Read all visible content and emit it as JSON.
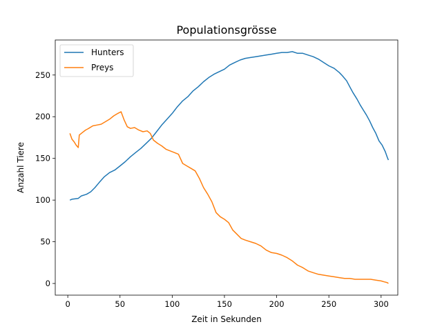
{
  "chart_data": {
    "type": "line",
    "title": "Populationsgrösse",
    "xlabel": "Zeit in Sekunden",
    "ylabel": "Anzahl Tiere",
    "xlim": [
      -12,
      316
    ],
    "ylim": [
      -14,
      292
    ],
    "xticks": [
      0,
      50,
      100,
      150,
      200,
      250,
      300
    ],
    "yticks": [
      0,
      50,
      100,
      150,
      200,
      250
    ],
    "grid": false,
    "legend_position": "top-left",
    "series": [
      {
        "name": "Hunters",
        "color": "#1f77b4",
        "points": [
          [
            2,
            100
          ],
          [
            4,
            101
          ],
          [
            10,
            102
          ],
          [
            13,
            105
          ],
          [
            18,
            107
          ],
          [
            22,
            110
          ],
          [
            26,
            115
          ],
          [
            30,
            121
          ],
          [
            35,
            128
          ],
          [
            40,
            133
          ],
          [
            45,
            136
          ],
          [
            50,
            141
          ],
          [
            55,
            146
          ],
          [
            60,
            152
          ],
          [
            65,
            157
          ],
          [
            70,
            162
          ],
          [
            75,
            168
          ],
          [
            80,
            174
          ],
          [
            85,
            182
          ],
          [
            90,
            190
          ],
          [
            95,
            197
          ],
          [
            100,
            204
          ],
          [
            105,
            212
          ],
          [
            110,
            219
          ],
          [
            115,
            224
          ],
          [
            120,
            231
          ],
          [
            125,
            236
          ],
          [
            130,
            242
          ],
          [
            135,
            247
          ],
          [
            140,
            251
          ],
          [
            145,
            254
          ],
          [
            150,
            257
          ],
          [
            155,
            262
          ],
          [
            160,
            265
          ],
          [
            165,
            268
          ],
          [
            170,
            270
          ],
          [
            175,
            271
          ],
          [
            180,
            272
          ],
          [
            185,
            273
          ],
          [
            190,
            274
          ],
          [
            195,
            275
          ],
          [
            200,
            276
          ],
          [
            205,
            277
          ],
          [
            210,
            277
          ],
          [
            215,
            278
          ],
          [
            220,
            276
          ],
          [
            225,
            276
          ],
          [
            230,
            274
          ],
          [
            235,
            272
          ],
          [
            240,
            269
          ],
          [
            245,
            265
          ],
          [
            250,
            261
          ],
          [
            255,
            258
          ],
          [
            260,
            253
          ],
          [
            263,
            249
          ],
          [
            267,
            243
          ],
          [
            270,
            236
          ],
          [
            273,
            229
          ],
          [
            277,
            221
          ],
          [
            280,
            214
          ],
          [
            283,
            208
          ],
          [
            286,
            202
          ],
          [
            289,
            195
          ],
          [
            292,
            187
          ],
          [
            295,
            180
          ],
          [
            298,
            171
          ],
          [
            301,
            166
          ],
          [
            304,
            158
          ],
          [
            306,
            151
          ],
          [
            307,
            148
          ]
        ]
      },
      {
        "name": "Preys",
        "color": "#ff7f0e",
        "points": [
          [
            2,
            180
          ],
          [
            4,
            173
          ],
          [
            6,
            170
          ],
          [
            8,
            166
          ],
          [
            10,
            163
          ],
          [
            11,
            178
          ],
          [
            14,
            181
          ],
          [
            17,
            184
          ],
          [
            20,
            186
          ],
          [
            24,
            189
          ],
          [
            28,
            190
          ],
          [
            32,
            191
          ],
          [
            36,
            194
          ],
          [
            40,
            197
          ],
          [
            44,
            201
          ],
          [
            48,
            204
          ],
          [
            51,
            206
          ],
          [
            54,
            196
          ],
          [
            57,
            188
          ],
          [
            60,
            186
          ],
          [
            64,
            187
          ],
          [
            68,
            184
          ],
          [
            72,
            182
          ],
          [
            76,
            183
          ],
          [
            79,
            180
          ],
          [
            82,
            172
          ],
          [
            86,
            168
          ],
          [
            90,
            165
          ],
          [
            94,
            161
          ],
          [
            98,
            159
          ],
          [
            102,
            157
          ],
          [
            106,
            155
          ],
          [
            110,
            144
          ],
          [
            114,
            141
          ],
          [
            118,
            138
          ],
          [
            122,
            135
          ],
          [
            126,
            126
          ],
          [
            130,
            115
          ],
          [
            134,
            107
          ],
          [
            138,
            98
          ],
          [
            142,
            85
          ],
          [
            146,
            80
          ],
          [
            150,
            77
          ],
          [
            154,
            73
          ],
          [
            158,
            64
          ],
          [
            162,
            59
          ],
          [
            166,
            54
          ],
          [
            170,
            52
          ],
          [
            175,
            50
          ],
          [
            180,
            48
          ],
          [
            185,
            45
          ],
          [
            190,
            40
          ],
          [
            195,
            37
          ],
          [
            200,
            36
          ],
          [
            205,
            34
          ],
          [
            210,
            31
          ],
          [
            215,
            27
          ],
          [
            220,
            22
          ],
          [
            225,
            19
          ],
          [
            230,
            15
          ],
          [
            235,
            13
          ],
          [
            240,
            11
          ],
          [
            245,
            10
          ],
          [
            250,
            9
          ],
          [
            255,
            8
          ],
          [
            260,
            7
          ],
          [
            265,
            6
          ],
          [
            270,
            6
          ],
          [
            275,
            5
          ],
          [
            280,
            5
          ],
          [
            285,
            5
          ],
          [
            290,
            5
          ],
          [
            295,
            4
          ],
          [
            300,
            3
          ],
          [
            303,
            2
          ],
          [
            306,
            1
          ],
          [
            307,
            0
          ]
        ]
      }
    ]
  }
}
